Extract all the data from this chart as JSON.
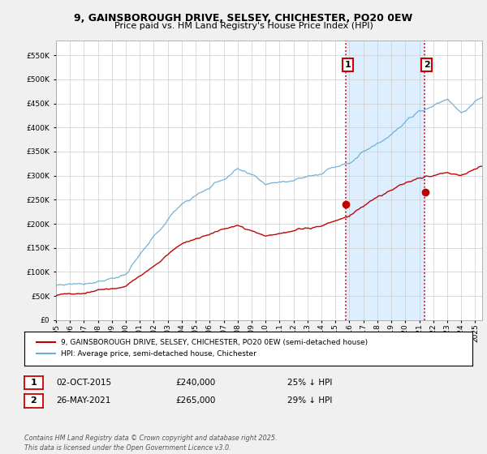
{
  "title_line1": "9, GAINSBOROUGH DRIVE, SELSEY, CHICHESTER, PO20 0EW",
  "title_line2": "Price paid vs. HM Land Registry's House Price Index (HPI)",
  "hpi_color": "#6baed6",
  "price_color": "#c00000",
  "vline_color": "#cc0000",
  "annotation1_label": "1",
  "annotation1_date": "02-OCT-2015",
  "annotation1_price": "£240,000",
  "annotation1_hpi": "25% ↓ HPI",
  "annotation2_label": "2",
  "annotation2_date": "26-MAY-2021",
  "annotation2_price": "£265,000",
  "annotation2_hpi": "29% ↓ HPI",
  "legend_line1": "9, GAINSBOROUGH DRIVE, SELSEY, CHICHESTER, PO20 0EW (semi-detached house)",
  "legend_line2": "HPI: Average price, semi-detached house, Chichester",
  "footer": "Contains HM Land Registry data © Crown copyright and database right 2025.\nThis data is licensed under the Open Government Licence v3.0.",
  "ylim": [
    0,
    580000
  ],
  "yticks": [
    0,
    50000,
    100000,
    150000,
    200000,
    250000,
    300000,
    350000,
    400000,
    450000,
    500000,
    550000
  ],
  "xstart_year": 1995,
  "xend_year": 2025,
  "sale1_year": 2015.75,
  "sale2_year": 2021.38,
  "sale1_price": 240000,
  "sale2_price": 265000,
  "background_color": "#f0f0f0",
  "plot_bg_color": "#ffffff",
  "shade_color": "#ddeeff"
}
